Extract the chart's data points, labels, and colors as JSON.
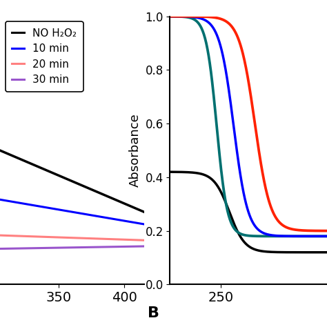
{
  "panel_label": "B",
  "ylabel": "Absorbance",
  "ylim": [
    0.0,
    1.0
  ],
  "yticks": [
    0.0,
    0.2,
    0.4,
    0.6,
    0.8,
    1.0
  ],
  "ytick_labels": [
    "0.0",
    "0.2",
    "0.4",
    "0.6",
    "0.8",
    "1.0"
  ],
  "left_xlim": [
    305,
    415
  ],
  "left_xticks": [
    350,
    400
  ],
  "left_ylim": [
    0.0,
    0.12
  ],
  "right_xlim": [
    238,
    275
  ],
  "right_xticks": [
    250
  ],
  "legend_entries": [
    {
      "label": "NO H₂O₂",
      "color": "#000000"
    },
    {
      "label": "10 min",
      "color": "#0000ff"
    },
    {
      "label": "20 min",
      "color": "#ff8080"
    },
    {
      "label": "30 min",
      "color": "#9955cc"
    }
  ],
  "right_colors": {
    "black": "#000000",
    "blue": "#0000ff",
    "teal": "#007070",
    "red": "#ff2200"
  },
  "lw": 2.2,
  "background": "#ffffff"
}
